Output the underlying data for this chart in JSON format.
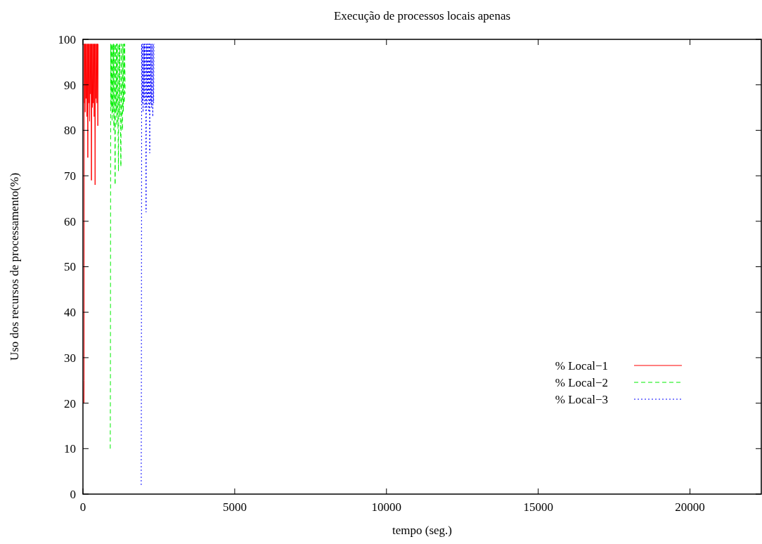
{
  "chart_data": {
    "type": "line",
    "title": "Execução de processos locais apenas",
    "xlabel": "tempo (seg.)",
    "ylabel": "Uso dos recursos de processamento(%)",
    "xlim": [
      0,
      22350
    ],
    "xticks": [
      0,
      5000,
      10000,
      15000,
      20000
    ],
    "ylim": [
      0,
      100
    ],
    "yticks": [
      0,
      10,
      20,
      30,
      40,
      50,
      60,
      70,
      80,
      90,
      100
    ],
    "grid": false,
    "legend": "right",
    "series": [
      {
        "name": "% Local−1",
        "color": "#ff0000",
        "line_style": "solid",
        "x": [
          35,
          40,
          45,
          50,
          60,
          70,
          85,
          100,
          115,
          130,
          145,
          160,
          175,
          190,
          205,
          220,
          235,
          250,
          265,
          280,
          295,
          310,
          325,
          340,
          355,
          370,
          385,
          400,
          415,
          430,
          445,
          460,
          475,
          490,
          500
        ],
        "values": [
          20,
          25,
          99,
          86,
          99,
          84,
          99,
          87,
          99,
          83,
          99,
          74,
          99,
          86,
          99,
          82,
          99,
          88,
          99,
          69,
          99,
          85,
          99,
          86,
          99,
          83,
          99,
          68,
          99,
          87,
          99,
          86,
          99,
          81,
          99
        ]
      },
      {
        "name": "% Local−2",
        "color": "#00ee00",
        "line_style": "dashed",
        "x": [
          900,
          905,
          915,
          930,
          945,
          960,
          975,
          990,
          1005,
          1020,
          1035,
          1050,
          1060,
          1075,
          1090,
          1105,
          1120,
          1135,
          1150,
          1170,
          1185,
          1200,
          1215,
          1230,
          1250,
          1265,
          1280,
          1300,
          1315,
          1330,
          1345,
          1360,
          1375,
          1390
        ],
        "values": [
          10,
          25,
          99,
          85,
          99,
          82,
          99,
          84,
          99,
          80,
          99,
          83,
          68,
          99,
          84,
          99,
          81,
          99,
          85,
          71,
          99,
          83,
          99,
          84,
          72,
          99,
          85,
          80,
          99,
          84,
          99,
          86,
          99,
          88
        ]
      },
      {
        "name": "% Local−3",
        "color": "#0000ff",
        "line_style": "dotted",
        "x": [
          1920,
          1925,
          1935,
          1950,
          1965,
          1980,
          1995,
          2010,
          2025,
          2040,
          2055,
          2070,
          2080,
          2095,
          2110,
          2125,
          2140,
          2155,
          2170,
          2185,
          2200,
          2215,
          2230,
          2245,
          2260,
          2275,
          2290,
          2300,
          2315,
          2330,
          2340
        ],
        "values": [
          2,
          25,
          99,
          86,
          99,
          84,
          99,
          87,
          99,
          85,
          99,
          86,
          62,
          99,
          85,
          99,
          87,
          99,
          84,
          99,
          75,
          99,
          86,
          99,
          85,
          99,
          88,
          83,
          99,
          86,
          99
        ]
      }
    ]
  }
}
